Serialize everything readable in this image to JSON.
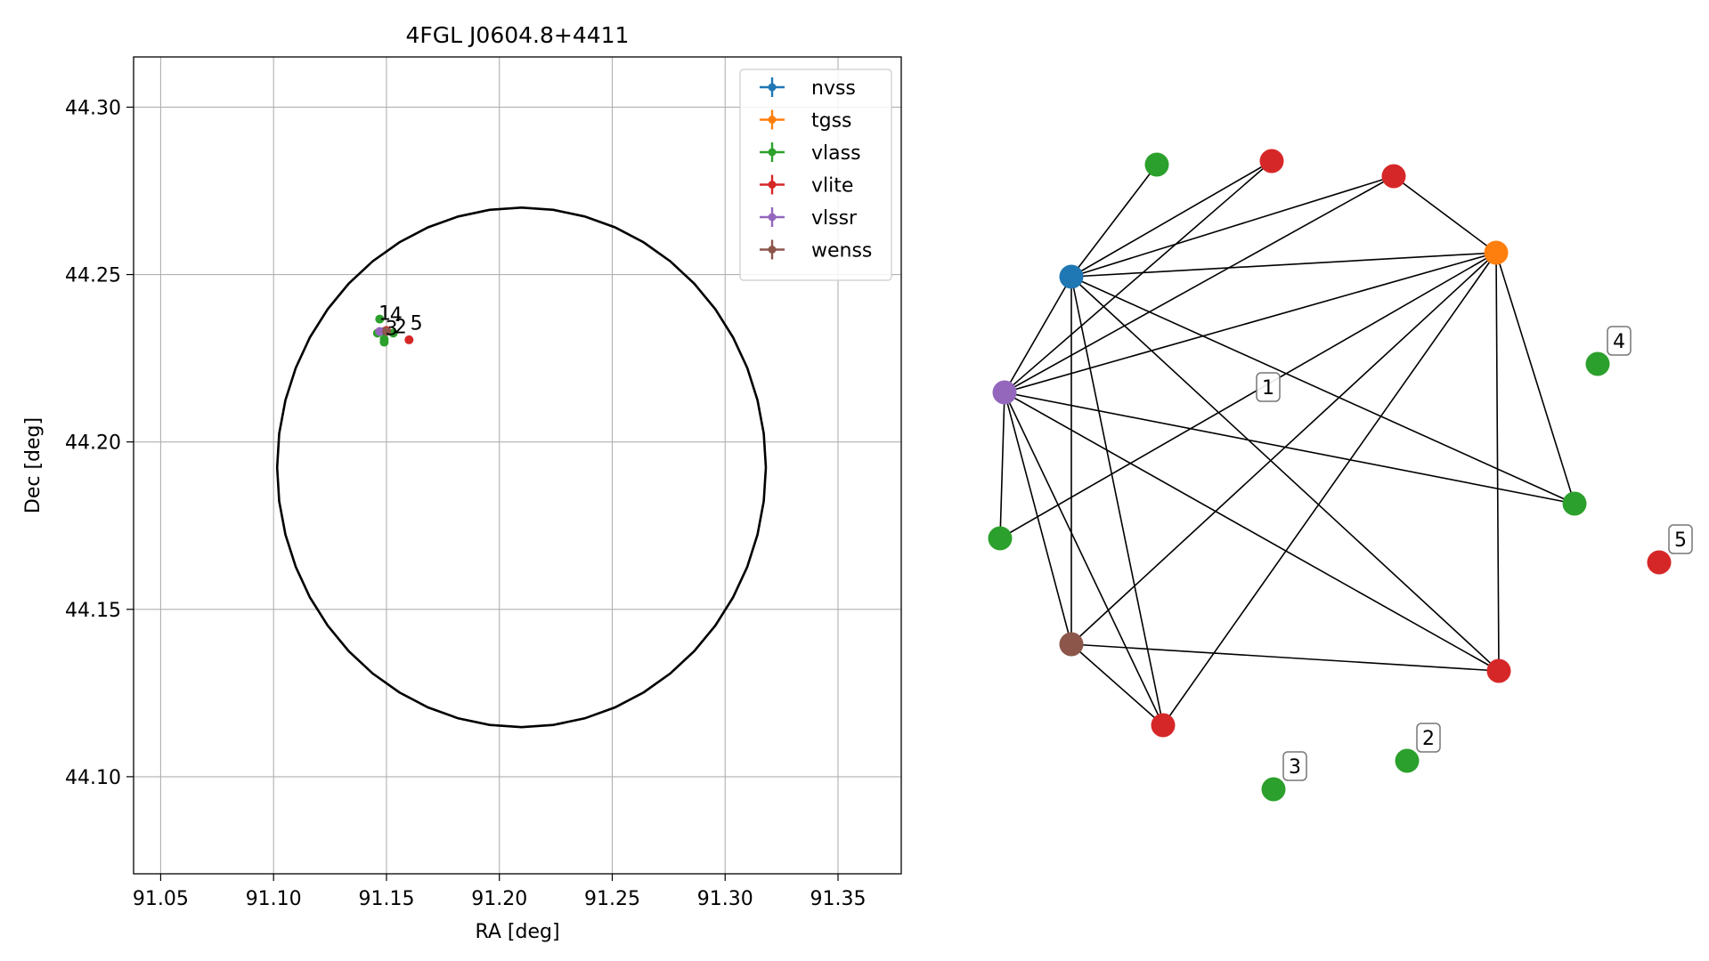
{
  "chart_data": [
    {
      "type": "scatter",
      "title": "4FGL J0604.8+4411",
      "xlabel": "RA [deg]",
      "ylabel": "Dec [deg]",
      "xlim": [
        91.038,
        91.378
      ],
      "ylim": [
        44.071,
        44.315
      ],
      "xticks": [
        91.05,
        91.1,
        91.15,
        91.2,
        91.25,
        91.3,
        91.35
      ],
      "xtick_labels": [
        "91.05",
        "91.10",
        "91.15",
        "91.20",
        "91.25",
        "91.30",
        "91.35"
      ],
      "yticks": [
        44.1,
        44.15,
        44.2,
        44.25,
        44.3
      ],
      "ytick_labels": [
        "44.10",
        "44.15",
        "44.20",
        "44.25",
        "44.30"
      ],
      "grid": true,
      "legend_position": "top-right",
      "series": [
        {
          "name": "nvss",
          "color": "#1f77b4",
          "points": [
            {
              "x": 91.149,
              "y": 44.233
            }
          ]
        },
        {
          "name": "tgss",
          "color": "#ff7f0e",
          "points": [
            {
              "x": 91.15,
              "y": 44.2332
            }
          ]
        },
        {
          "name": "vlass",
          "color": "#2ca02c",
          "points": [
            {
              "x": 91.147,
              "y": 44.2367
            },
            {
              "x": 91.153,
              "y": 44.2325
            },
            {
              "x": 91.146,
              "y": 44.2325
            },
            {
              "x": 91.149,
              "y": 44.2298
            },
            {
              "x": 91.149,
              "y": 44.2307
            }
          ]
        },
        {
          "name": "vlite",
          "color": "#d62728",
          "points": [
            {
              "x": 91.16,
              "y": 44.2305
            },
            {
              "x": 91.15,
              "y": 44.2333
            }
          ]
        },
        {
          "name": "vlssr",
          "color": "#9467bd",
          "points": [
            {
              "x": 91.147,
              "y": 44.233
            }
          ]
        },
        {
          "name": "wenss",
          "color": "#8c564b",
          "points": [
            {
              "x": 91.15,
              "y": 44.233
            }
          ]
        }
      ],
      "annotations": [
        {
          "text": "1",
          "x": 91.1465,
          "y": 44.2365
        },
        {
          "text": "4",
          "x": 91.1515,
          "y": 44.236
        },
        {
          "text": "3",
          "x": 91.1495,
          "y": 44.232
        },
        {
          "text": "2",
          "x": 91.1535,
          "y": 44.2325
        },
        {
          "text": "5",
          "x": 91.1605,
          "y": 44.2335
        }
      ],
      "circle": {
        "center_ra": 91.2098,
        "center_dec": 44.1924,
        "radius_deg": 0.0776
      }
    },
    {
      "type": "network",
      "nodes": [
        {
          "id": "nv",
          "survey": "nvss",
          "color": "#1f77b4"
        },
        {
          "id": "tg",
          "survey": "tgss",
          "color": "#ff7f0e"
        },
        {
          "id": "vs",
          "survey": "vlssr",
          "color": "#9467bd"
        },
        {
          "id": "we",
          "survey": "wenss",
          "color": "#8c564b"
        },
        {
          "id": "r1",
          "survey": "vlite",
          "color": "#d62728"
        },
        {
          "id": "r2",
          "survey": "vlite",
          "color": "#d62728"
        },
        {
          "id": "r3",
          "survey": "vlite",
          "color": "#d62728"
        },
        {
          "id": "r4",
          "survey": "vlite",
          "color": "#d62728"
        },
        {
          "id": "r5",
          "survey": "vlite",
          "color": "#d62728",
          "label": "5"
        },
        {
          "id": "g1",
          "survey": "vlass",
          "color": "#2ca02c"
        },
        {
          "id": "g2",
          "survey": "vlass",
          "color": "#2ca02c"
        },
        {
          "id": "g3",
          "survey": "vlass",
          "color": "#2ca02c"
        },
        {
          "id": "g4",
          "survey": "vlass",
          "color": "#2ca02c",
          "label": "4"
        },
        {
          "id": "g5",
          "survey": "vlass",
          "color": "#2ca02c",
          "label": "2"
        },
        {
          "id": "g6",
          "survey": "vlass",
          "color": "#2ca02c",
          "label": "3"
        }
      ],
      "edges": [
        [
          "g1",
          "nv"
        ],
        [
          "r1",
          "nv"
        ],
        [
          "r1",
          "vs"
        ],
        [
          "r2",
          "nv"
        ],
        [
          "r2",
          "vs"
        ],
        [
          "r2",
          "tg"
        ],
        [
          "nv",
          "tg"
        ],
        [
          "nv",
          "vs"
        ],
        [
          "nv",
          "we"
        ],
        [
          "nv",
          "r3"
        ],
        [
          "nv",
          "r4"
        ],
        [
          "nv",
          "g3"
        ],
        [
          "tg",
          "vs"
        ],
        [
          "tg",
          "r4"
        ],
        [
          "tg",
          "g3"
        ],
        [
          "tg",
          "we"
        ],
        [
          "tg",
          "r3"
        ],
        [
          "tg",
          "g2"
        ],
        [
          "vs",
          "g2"
        ],
        [
          "vs",
          "we"
        ],
        [
          "vs",
          "r3"
        ],
        [
          "vs",
          "r4"
        ],
        [
          "vs",
          "g3"
        ],
        [
          "we",
          "r3"
        ],
        [
          "we",
          "r4"
        ]
      ],
      "floating_labels": [
        {
          "text": "1"
        }
      ]
    }
  ]
}
